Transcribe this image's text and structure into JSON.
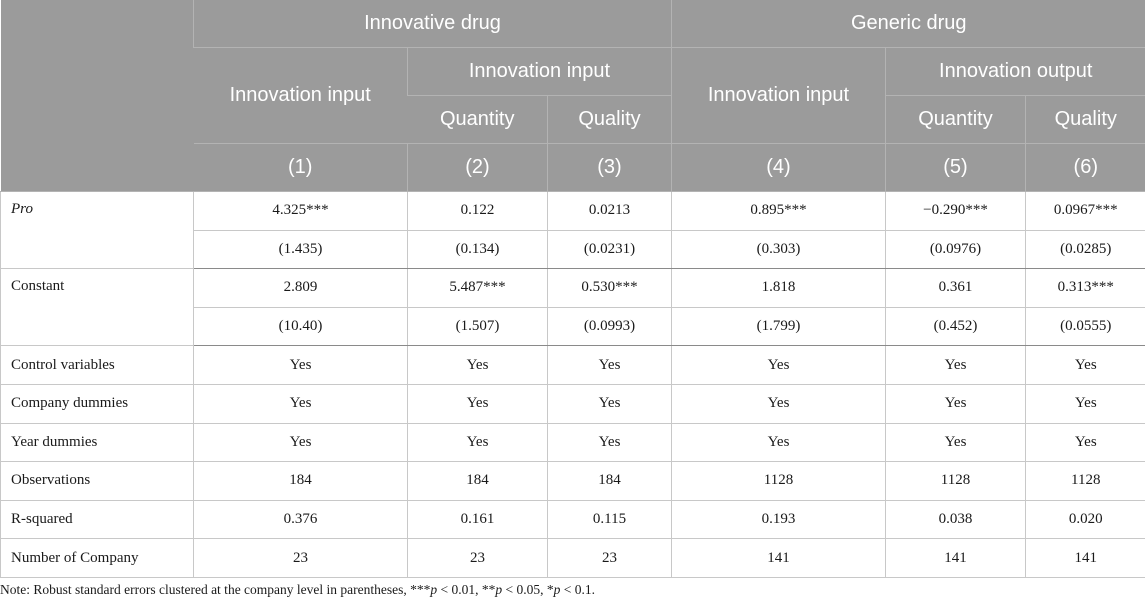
{
  "header": {
    "group1": "Innovative drug",
    "group2": "Generic drug",
    "sub1": "Innovation input",
    "sub2": "Innovation input",
    "sub3": "Innovation input",
    "sub4": "Innovation output",
    "quantity": "Quantity",
    "quality": "Quality",
    "cols": [
      "(1)",
      "(2)",
      "(3)",
      "(4)",
      "(5)",
      "(6)"
    ]
  },
  "rows": {
    "pro": {
      "label": "Pro",
      "coef": [
        "4.325***",
        "0.122",
        "0.0213",
        "0.895***",
        "−0.290***",
        "0.0967***"
      ],
      "se": [
        "(1.435)",
        "(0.134)",
        "(0.0231)",
        "(0.303)",
        "(0.0976)",
        "(0.0285)"
      ]
    },
    "constant": {
      "label": "Constant",
      "coef": [
        "2.809",
        "5.487***",
        "0.530***",
        "1.818",
        "0.361",
        "0.313***"
      ],
      "se": [
        "(10.40)",
        "(1.507)",
        "(0.0993)",
        "(1.799)",
        "(0.452)",
        "(0.0555)"
      ]
    },
    "control": {
      "label": "Control variables",
      "vals": [
        "Yes",
        "Yes",
        "Yes",
        "Yes",
        "Yes",
        "Yes"
      ]
    },
    "company": {
      "label": "Company dummies",
      "vals": [
        "Yes",
        "Yes",
        "Yes",
        "Yes",
        "Yes",
        "Yes"
      ]
    },
    "year": {
      "label": "Year dummies",
      "vals": [
        "Yes",
        "Yes",
        "Yes",
        "Yes",
        "Yes",
        "Yes"
      ]
    },
    "obs": {
      "label": "Observations",
      "vals": [
        "184",
        "184",
        "184",
        "1128",
        "1128",
        "1128"
      ]
    },
    "r2": {
      "label": "R-squared",
      "vals": [
        "0.376",
        "0.161",
        "0.115",
        "0.193",
        "0.038",
        "0.020"
      ]
    },
    "ncomp": {
      "label": "Number of Company",
      "vals": [
        "23",
        "23",
        "23",
        "141",
        "141",
        "141"
      ]
    }
  },
  "note": {
    "prefix": "Note: Robust standard errors clustered at the company level in parentheses, ***",
    "p1": "p",
    "t1": " < 0.01, **",
    "p2": "p",
    "t2": " < 0.05, *",
    "p3": "p",
    "t3": " < 0.1."
  }
}
